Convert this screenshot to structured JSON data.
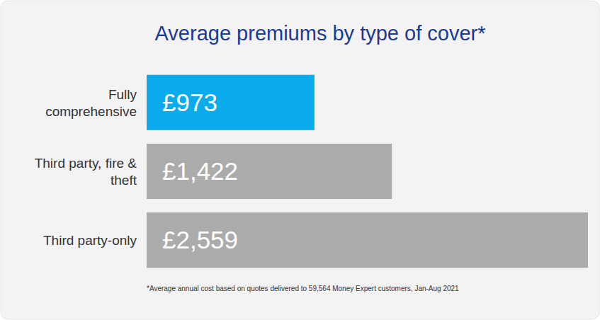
{
  "chart_data": {
    "type": "bar",
    "orientation": "horizontal",
    "title": "Average premiums by type of cover*",
    "categories": [
      "Fully comprehensive",
      "Third party, fire & theft",
      "Third party-only"
    ],
    "values": [
      973,
      1422,
      2559
    ],
    "value_labels": [
      "£973",
      "£1,422",
      "£2,559"
    ],
    "colors": [
      "#0aabec",
      "#ababab",
      "#ababab"
    ],
    "data_labels": true,
    "tick_labels": "y",
    "grid": false,
    "annotations": [
      "*Average annual cost based on quotes delivered to 59,564 Money Expert customers, Jan-Aug 2021"
    ]
  }
}
